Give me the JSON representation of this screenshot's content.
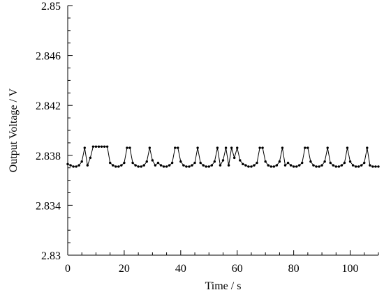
{
  "chart_data": {
    "type": "line",
    "title": "",
    "xlabel": "Time / s",
    "ylabel": "Output Voltage / V",
    "xlim": [
      0,
      110
    ],
    "ylim": [
      2.83,
      2.85
    ],
    "x_ticks": [
      0,
      20,
      40,
      60,
      80,
      100
    ],
    "x_tick_labels": [
      "0",
      "20",
      "40",
      "60",
      "80",
      "100"
    ],
    "y_ticks": [
      2.83,
      2.834,
      2.838,
      2.842,
      2.846,
      2.85
    ],
    "y_tick_labels": [
      "2.83",
      "2.834",
      "2.838",
      "2.842",
      "2.846",
      "2.85"
    ],
    "grid": false,
    "legend": "none",
    "line_color": "#000000",
    "marker": "filled-circle",
    "series": [
      {
        "x": [
          0,
          1,
          2,
          3,
          4,
          5,
          6,
          7,
          8,
          9,
          10,
          11,
          12,
          13,
          14,
          15,
          16,
          17,
          18,
          19,
          20,
          21,
          22,
          23,
          24,
          25,
          26,
          27,
          28,
          29,
          30,
          31,
          32,
          33,
          34,
          35,
          36,
          37,
          38,
          39,
          40,
          41,
          42,
          43,
          44,
          45,
          46,
          47,
          48,
          49,
          50,
          51,
          52,
          53,
          54,
          55,
          56,
          57,
          58,
          59,
          60,
          61,
          62,
          63,
          64,
          65,
          66,
          67,
          68,
          69,
          70,
          71,
          72,
          73,
          74,
          75,
          76,
          77,
          78,
          79,
          80,
          81,
          82,
          83,
          84,
          85,
          86,
          87,
          88,
          89,
          90,
          91,
          92,
          93,
          94,
          95,
          96,
          97,
          98,
          99,
          100,
          101,
          102,
          103,
          104,
          105,
          106,
          107,
          108,
          109,
          110
        ],
        "y": [
          2.8373,
          2.8372,
          2.8371,
          2.8371,
          2.8372,
          2.8375,
          2.8386,
          2.8372,
          2.8378,
          2.8387,
          2.8387,
          2.8387,
          2.8387,
          2.8387,
          2.8387,
          2.8374,
          2.8372,
          2.8371,
          2.8371,
          2.8372,
          2.8374,
          2.8386,
          2.8386,
          2.8374,
          2.8372,
          2.8371,
          2.8371,
          2.8372,
          2.8375,
          2.8386,
          2.8376,
          2.8372,
          2.8374,
          2.8372,
          2.8371,
          2.8371,
          2.8372,
          2.8374,
          2.8386,
          2.8386,
          2.8375,
          2.8372,
          2.8371,
          2.8371,
          2.8372,
          2.8374,
          2.8386,
          2.8374,
          2.8372,
          2.8371,
          2.8371,
          2.8372,
          2.8375,
          2.8386,
          2.8372,
          2.8376,
          2.8386,
          2.8372,
          2.8386,
          2.8378,
          2.8386,
          2.8376,
          2.8373,
          2.8372,
          2.8371,
          2.8371,
          2.8372,
          2.8374,
          2.8386,
          2.8386,
          2.8375,
          2.8372,
          2.8371,
          2.8371,
          2.8372,
          2.8375,
          2.8386,
          2.8372,
          2.8374,
          2.8372,
          2.8371,
          2.8371,
          2.8372,
          2.8374,
          2.8386,
          2.8386,
          2.8375,
          2.8372,
          2.8371,
          2.8371,
          2.8372,
          2.8375,
          2.8386,
          2.8374,
          2.8372,
          2.8371,
          2.8371,
          2.8372,
          2.8374,
          2.8386,
          2.8375,
          2.8372,
          2.8371,
          2.8371,
          2.8372,
          2.8374,
          2.8386,
          2.8372,
          2.8371,
          2.8371,
          2.8371
        ]
      }
    ]
  }
}
